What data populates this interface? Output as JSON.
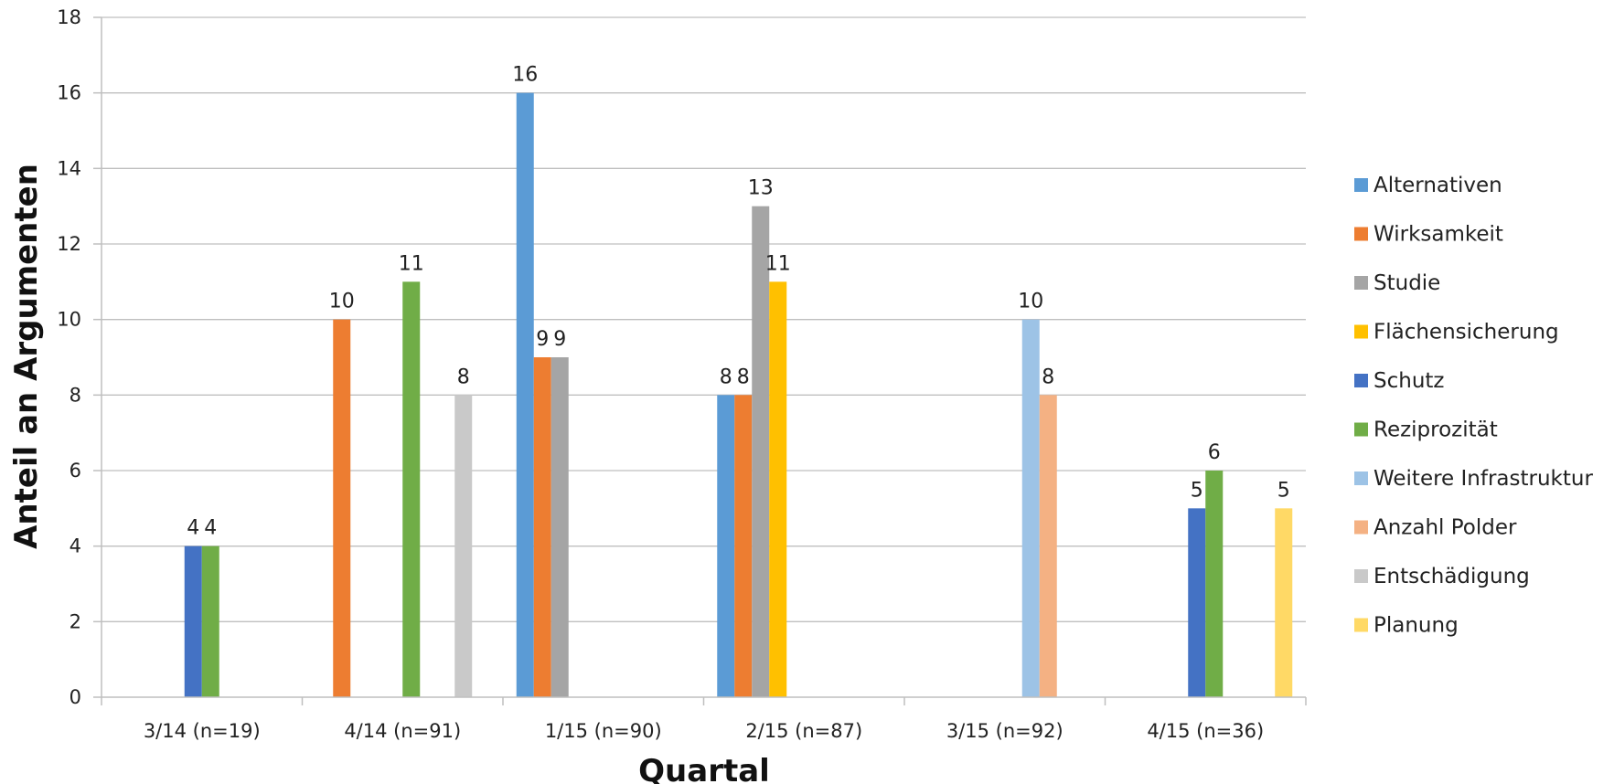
{
  "chart_data": {
    "type": "bar",
    "title": "",
    "xlabel": "Quartal",
    "ylabel": "Anteil an Argumenten",
    "ylim": [
      0,
      18
    ],
    "yticks": [
      0,
      2,
      4,
      6,
      8,
      10,
      12,
      14,
      16,
      18
    ],
    "grid": true,
    "legend_position": "right",
    "categories": [
      "3/14 (n=19)",
      "4/14 (n=91)",
      "1/15 (n=90)",
      "2/15 (n=87)",
      "3/15 (n=92)",
      "4/15 (n=36)"
    ],
    "series": [
      {
        "name": "Alternativen",
        "color": "#5B9BD5",
        "values": [
          0,
          0,
          16,
          8,
          0,
          0
        ]
      },
      {
        "name": "Wirksamkeit",
        "color": "#ED7D31",
        "values": [
          0,
          10,
          9,
          8,
          0,
          0
        ]
      },
      {
        "name": "Studie",
        "color": "#A5A5A5",
        "values": [
          0,
          0,
          9,
          13,
          0,
          0
        ]
      },
      {
        "name": "Flächensicherung",
        "color": "#FFC000",
        "values": [
          0,
          0,
          0,
          11,
          0,
          0
        ]
      },
      {
        "name": "Schutz",
        "color": "#4472C4",
        "values": [
          4,
          0,
          0,
          0,
          0,
          5
        ]
      },
      {
        "name": "Reziprozität",
        "color": "#70AD47",
        "values": [
          4,
          11,
          0,
          0,
          0,
          6
        ]
      },
      {
        "name": "Weitere Infrastruktur",
        "color": "#9DC3E6",
        "values": [
          0,
          0,
          0,
          0,
          10,
          0
        ]
      },
      {
        "name": "Anzahl Polder",
        "color": "#F4B183",
        "values": [
          0,
          0,
          0,
          0,
          8,
          0
        ]
      },
      {
        "name": "Entschädigung",
        "color": "#C9C9C9",
        "values": [
          0,
          8,
          0,
          0,
          0,
          0
        ]
      },
      {
        "name": "Planung",
        "color": "#FFD966",
        "values": [
          0,
          0,
          0,
          0,
          0,
          5
        ]
      }
    ]
  }
}
